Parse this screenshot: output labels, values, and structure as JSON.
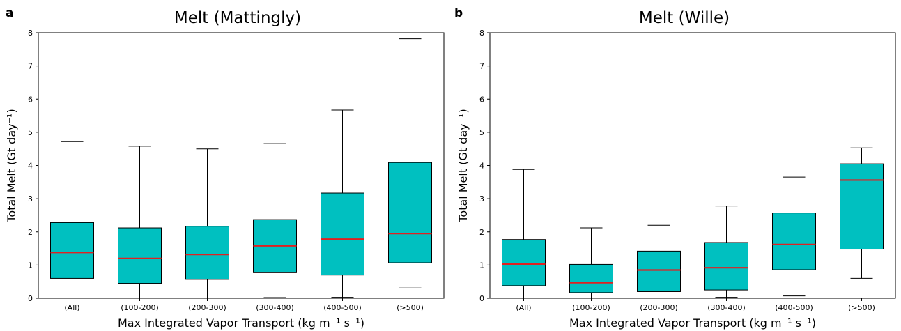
{
  "chart_data": [
    {
      "type": "box",
      "panel": "a",
      "title": "Melt (Mattingly)",
      "xlabel": "Max Integrated Vapor Transport (kg m⁻¹ s⁻¹)",
      "ylabel": "Total Melt (Gt day⁻¹)",
      "ylim": [
        0,
        8
      ],
      "yticks": [
        "0",
        "1",
        "2",
        "3",
        "4",
        "5",
        "6",
        "7",
        "8"
      ],
      "categories": [
        "(All)",
        "(100-200)",
        "(200-300)",
        "(300-400)",
        "(400-500)",
        "(>500)"
      ],
      "boxes": [
        {
          "min": 0.0,
          "q1": 0.6,
          "median": 1.38,
          "q3": 2.28,
          "max": 4.72
        },
        {
          "min": 0.0,
          "q1": 0.45,
          "median": 1.2,
          "q3": 2.12,
          "max": 4.58
        },
        {
          "min": 0.0,
          "q1": 0.57,
          "median": 1.32,
          "q3": 2.17,
          "max": 4.5
        },
        {
          "min": 0.02,
          "q1": 0.77,
          "median": 1.58,
          "q3": 2.37,
          "max": 4.66
        },
        {
          "min": 0.03,
          "q1": 0.7,
          "median": 1.78,
          "q3": 3.17,
          "max": 5.67
        },
        {
          "min": 0.31,
          "q1": 1.07,
          "median": 1.95,
          "q3": 4.09,
          "max": 7.82
        }
      ],
      "box_color": "#00c0c0",
      "median_color": "#e02020"
    },
    {
      "type": "box",
      "panel": "b",
      "title": "Melt (Wille)",
      "xlabel": "Max Integrated Vapor Transport (kg m⁻¹ s⁻¹)",
      "ylabel": "Total Melt (Gt day⁻¹)",
      "ylim": [
        0,
        8
      ],
      "yticks": [
        "0",
        "1",
        "2",
        "3",
        "4",
        "5",
        "6",
        "7",
        "8"
      ],
      "categories": [
        "(All)",
        "(100-200)",
        "(200-300)",
        "(300-400)",
        "(400-500)",
        "(>500)"
      ],
      "boxes": [
        {
          "min": 0.0,
          "q1": 0.38,
          "median": 1.03,
          "q3": 1.77,
          "max": 3.88
        },
        {
          "min": 0.0,
          "q1": 0.17,
          "median": 0.47,
          "q3": 1.02,
          "max": 2.12
        },
        {
          "min": 0.0,
          "q1": 0.2,
          "median": 0.85,
          "q3": 1.42,
          "max": 2.2
        },
        {
          "min": 0.03,
          "q1": 0.25,
          "median": 0.92,
          "q3": 1.68,
          "max": 2.78
        },
        {
          "min": 0.07,
          "q1": 0.86,
          "median": 1.62,
          "q3": 2.57,
          "max": 3.65
        },
        {
          "min": 0.6,
          "q1": 1.48,
          "median": 3.56,
          "q3": 4.05,
          "max": 4.53
        }
      ],
      "box_color": "#00c0c0",
      "median_color": "#e02020"
    }
  ]
}
